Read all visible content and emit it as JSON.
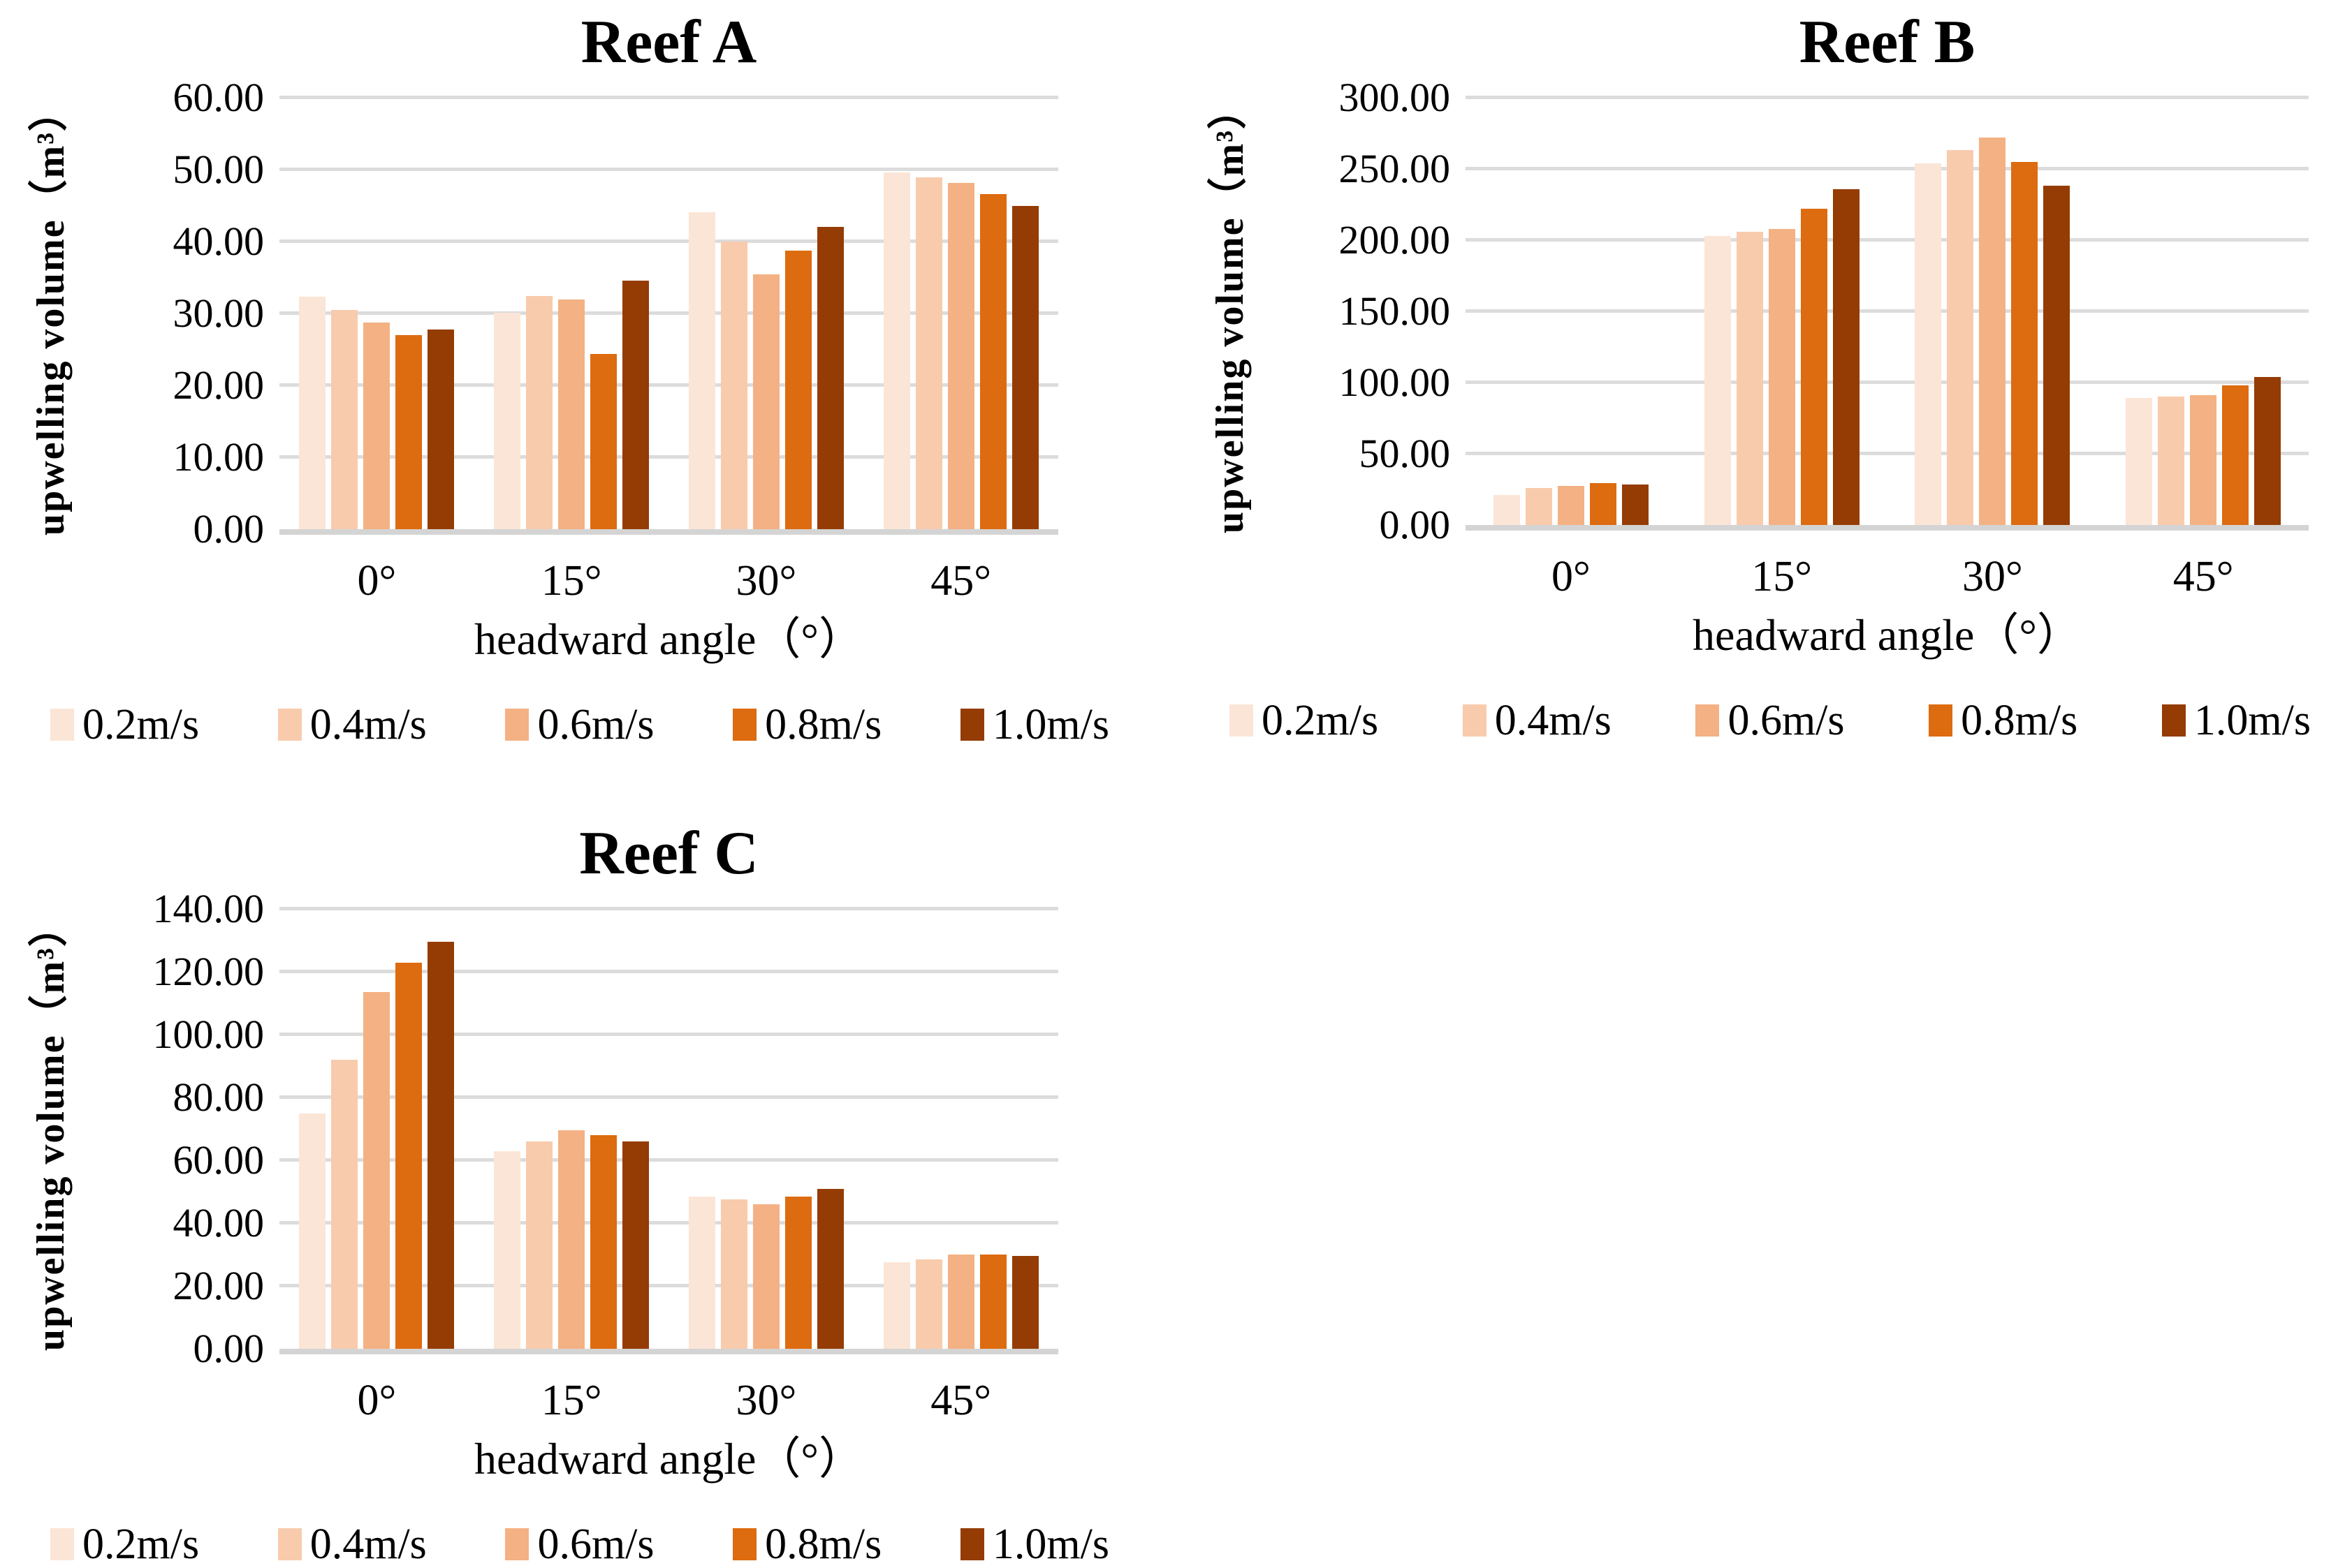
{
  "colors": {
    "background": "#FFFFFF",
    "grid": "#DCDCDC",
    "axis_line": "#D4D4D4",
    "text": "#000000"
  },
  "series_labels": [
    "0.2m/s",
    "0.4m/s",
    "0.6m/s",
    "0.8m/s",
    "1.0m/s"
  ],
  "series_colors": [
    "#FBE5D6",
    "#F8CBAD",
    "#F4B183",
    "#DD6B10",
    "#943C04"
  ],
  "chart_data": [
    {
      "type": "bar",
      "title": "Reef A",
      "xlabel": "headward angle（°）",
      "ylabel": "upwelling volume（m³）",
      "categories": [
        "0°",
        "15°",
        "30°",
        "45°"
      ],
      "ylim": [
        0,
        60
      ],
      "ytick_step": 10,
      "ytick_labels": [
        "0.00",
        "10.00",
        "20.00",
        "30.00",
        "40.00",
        "50.00",
        "60.00"
      ],
      "grid": true,
      "legend_position": "bottom",
      "series": [
        {
          "name": "0.2m/s",
          "color": "#FBE5D6",
          "values": [
            32.3,
            30.1,
            44.1,
            49.6
          ]
        },
        {
          "name": "0.4m/s",
          "color": "#F8CBAD",
          "values": [
            30.5,
            32.4,
            40.0,
            48.9
          ]
        },
        {
          "name": "0.6m/s",
          "color": "#F4B183",
          "values": [
            28.7,
            31.9,
            35.4,
            48.2
          ]
        },
        {
          "name": "0.8m/s",
          "color": "#DD6B10",
          "values": [
            27.0,
            24.4,
            38.7,
            46.6
          ]
        },
        {
          "name": "1.0m/s",
          "color": "#943C04",
          "values": [
            27.8,
            34.6,
            42.0,
            45.0
          ]
        }
      ]
    },
    {
      "type": "bar",
      "title": "Reef B",
      "xlabel": "headward angle（°）",
      "ylabel": "upwelling volume（m³）",
      "categories": [
        "0°",
        "15°",
        "30°",
        "45°"
      ],
      "ylim": [
        0,
        300
      ],
      "ytick_step": 50,
      "ytick_labels": [
        "0.00",
        "50.00",
        "100.00",
        "150.00",
        "200.00",
        "250.00",
        "300.00"
      ],
      "grid": true,
      "legend_position": "bottom",
      "series": [
        {
          "name": "0.2m/s",
          "color": "#FBE5D6",
          "values": [
            21.0,
            203.0,
            254.0,
            89.0
          ]
        },
        {
          "name": "0.4m/s",
          "color": "#F8CBAD",
          "values": [
            26.0,
            206.0,
            263.0,
            90.0
          ]
        },
        {
          "name": "0.6m/s",
          "color": "#F4B183",
          "values": [
            27.5,
            208.0,
            272.0,
            91.0
          ]
        },
        {
          "name": "0.8m/s",
          "color": "#DD6B10",
          "values": [
            29.5,
            222.0,
            255.0,
            98.0
          ]
        },
        {
          "name": "1.0m/s",
          "color": "#943C04",
          "values": [
            28.5,
            236.0,
            238.0,
            104.0
          ]
        }
      ]
    },
    {
      "type": "bar",
      "title": "Reef C",
      "xlabel": "headward angle（°）",
      "ylabel": "upwelling volume（m³）",
      "categories": [
        "0°",
        "15°",
        "30°",
        "45°"
      ],
      "ylim": [
        0,
        140
      ],
      "ytick_step": 20,
      "ytick_labels": [
        "0.00",
        "20.00",
        "40.00",
        "60.00",
        "80.00",
        "100.00",
        "120.00",
        "140.00"
      ],
      "grid": true,
      "legend_position": "bottom",
      "series": [
        {
          "name": "0.2m/s",
          "color": "#FBE5D6",
          "values": [
            75.0,
            63.0,
            48.5,
            27.5
          ]
        },
        {
          "name": "0.4m/s",
          "color": "#F8CBAD",
          "values": [
            92.0,
            66.0,
            47.5,
            28.5
          ]
        },
        {
          "name": "0.6m/s",
          "color": "#F4B183",
          "values": [
            113.5,
            69.5,
            46.0,
            30.0
          ]
        },
        {
          "name": "0.8m/s",
          "color": "#DD6B10",
          "values": [
            123.0,
            68.0,
            48.5,
            30.0
          ]
        },
        {
          "name": "1.0m/s",
          "color": "#943C04",
          "values": [
            129.5,
            66.0,
            51.0,
            29.5
          ]
        }
      ]
    }
  ]
}
